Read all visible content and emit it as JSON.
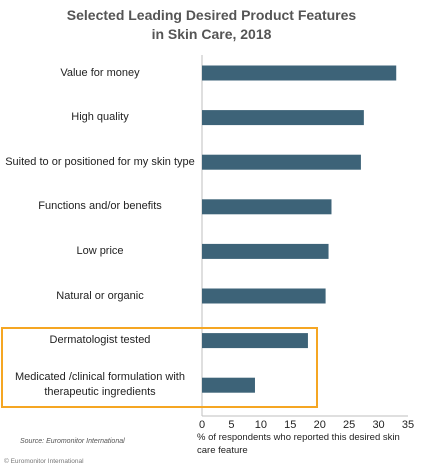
{
  "chart_data": {
    "type": "bar",
    "orientation": "horizontal",
    "title_lines": [
      "Selected Leading Desired Product Features",
      "in Skin Care, 2018"
    ],
    "categories": [
      "Value for money",
      "High quality",
      "Suited to or positioned for my skin type",
      "Functions and/or benefits",
      "Low price",
      "Natural or organic",
      "Dermatologist tested",
      "Medicated /clinical formulation with therapeutic ingredients"
    ],
    "values": [
      33,
      27.5,
      27,
      22,
      21.5,
      21,
      18,
      9
    ],
    "xlim": [
      0,
      35
    ],
    "xticks": [
      0,
      5,
      10,
      15,
      20,
      25,
      30,
      35
    ],
    "xlabel": "% of respondents who reported this desired skin care feature",
    "ylabel": "",
    "grid": false,
    "bar_color": "#3d6378",
    "highlighted_categories": [
      "Dermatologist tested",
      "Medicated /clinical formulation with therapeutic ingredients"
    ],
    "highlight_color": "#f5a623"
  },
  "footer": {
    "source": "Source: Euromonitor International",
    "copyright": "© Euromonitor International"
  }
}
